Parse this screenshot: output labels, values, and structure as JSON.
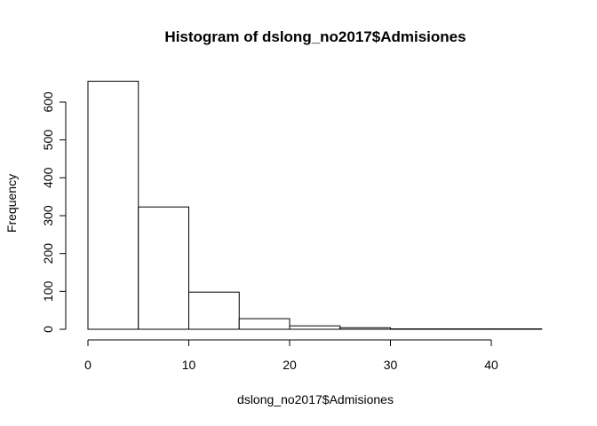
{
  "chart_data": {
    "type": "bar",
    "title": "Histogram of dslong_no2017$Admisiones",
    "xlabel": "dslong_no2017$Admisiones",
    "ylabel": "Frequency",
    "bins": [
      {
        "start": 0,
        "end": 5,
        "count": 655
      },
      {
        "start": 5,
        "end": 10,
        "count": 323
      },
      {
        "start": 10,
        "end": 15,
        "count": 98
      },
      {
        "start": 15,
        "end": 20,
        "count": 28
      },
      {
        "start": 20,
        "end": 25,
        "count": 9
      },
      {
        "start": 25,
        "end": 30,
        "count": 4
      },
      {
        "start": 30,
        "end": 35,
        "count": 1
      },
      {
        "start": 35,
        "end": 40,
        "count": 1
      },
      {
        "start": 40,
        "end": 45,
        "count": 1
      }
    ],
    "xlim": [
      0,
      45
    ],
    "ylim": [
      0,
      655
    ],
    "xticks": [
      0,
      10,
      20,
      30,
      40
    ],
    "yticks": [
      0,
      100,
      200,
      300,
      400,
      500,
      600
    ],
    "grid": false,
    "colors": {
      "bar_fill": "#ffffff",
      "bar_stroke": "#000000"
    }
  }
}
